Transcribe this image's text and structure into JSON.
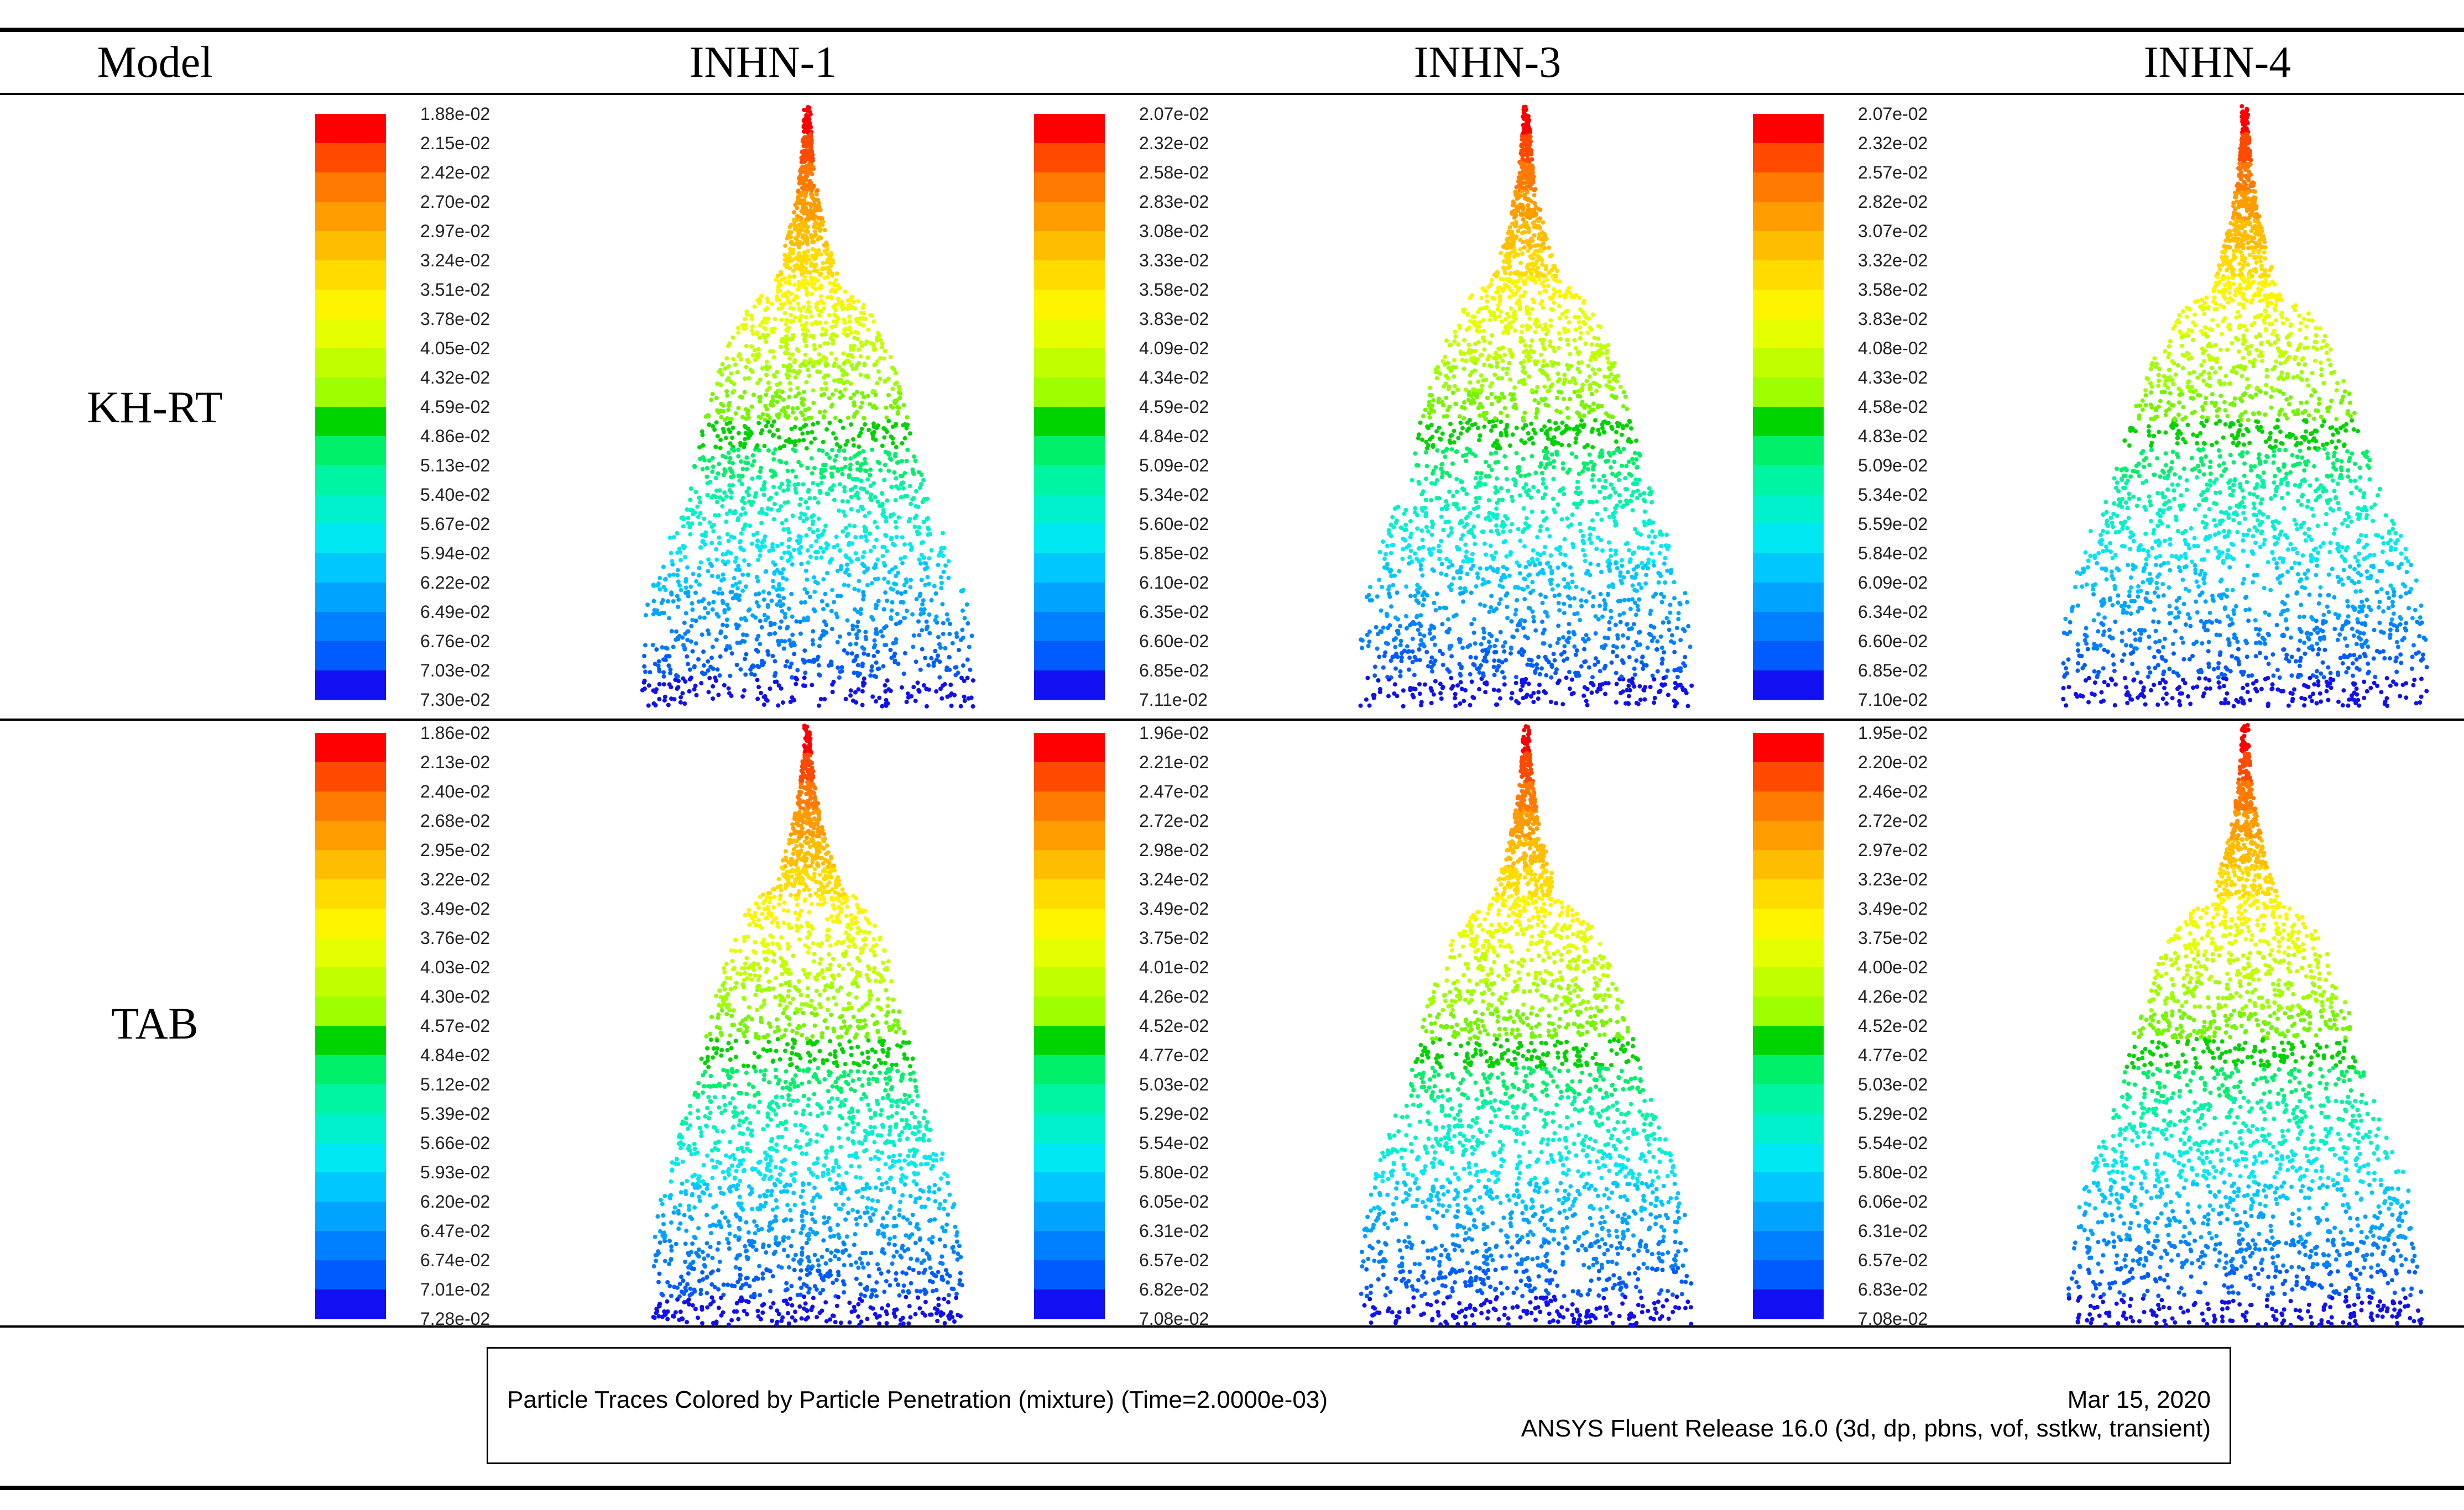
{
  "table": {
    "header_model": "Model",
    "columns": [
      "INHN-1",
      "INHN-3",
      "INHN-4"
    ],
    "rows": [
      "KH-RT",
      "TAB"
    ]
  },
  "colors": {
    "scale": [
      "#ff0000",
      "#ff4a00",
      "#ff7a00",
      "#ff9d00",
      "#ffbd00",
      "#ffdb00",
      "#fff400",
      "#e5ff00",
      "#c1ff00",
      "#9dff00",
      "#76f500",
      "#00d400",
      "#00f06a",
      "#00f5a3",
      "#00f2cd",
      "#00e8f2",
      "#00c8ff",
      "#00a4ff",
      "#0080ff",
      "#005cff",
      "#1010f0"
    ],
    "line": "#000000"
  },
  "chart_data": [
    {
      "type": "colorbar",
      "row": "KH-RT",
      "model": "INHN-1",
      "title": "Particle Penetration (mixture)",
      "tick_labels": [
        "1.88e-02",
        "2.15e-02",
        "2.42e-02",
        "2.70e-02",
        "2.97e-02",
        "3.24e-02",
        "3.51e-02",
        "3.78e-02",
        "4.05e-02",
        "4.32e-02",
        "4.59e-02",
        "4.86e-02",
        "5.13e-02",
        "5.40e-02",
        "5.67e-02",
        "5.94e-02",
        "6.22e-02",
        "6.49e-02",
        "6.76e-02",
        "7.03e-02",
        "7.30e-02"
      ],
      "spray": {
        "core_end_fraction": 0.31,
        "transition_fraction": 0.65,
        "max_half_width": 300
      }
    },
    {
      "type": "colorbar",
      "row": "KH-RT",
      "model": "INHN-3",
      "title": "Particle Penetration (mixture)",
      "tick_labels": [
        "2.07e-02",
        "2.32e-02",
        "2.58e-02",
        "2.83e-02",
        "3.08e-02",
        "3.33e-02",
        "3.58e-02",
        "3.83e-02",
        "4.09e-02",
        "4.34e-02",
        "4.59e-02",
        "4.84e-02",
        "5.09e-02",
        "5.34e-02",
        "5.60e-02",
        "5.85e-02",
        "6.10e-02",
        "6.35e-02",
        "6.60e-02",
        "6.85e-02",
        "7.11e-02"
      ],
      "spray": {
        "core_end_fraction": 0.3,
        "transition_fraction": 0.62,
        "max_half_width": 300
      }
    },
    {
      "type": "colorbar",
      "row": "KH-RT",
      "model": "INHN-4",
      "title": "Particle Penetration (mixture)",
      "tick_labels": [
        "2.07e-02",
        "2.32e-02",
        "2.57e-02",
        "2.82e-02",
        "3.07e-02",
        "3.32e-02",
        "3.58e-02",
        "3.83e-02",
        "4.08e-02",
        "4.33e-02",
        "4.58e-02",
        "4.83e-02",
        "5.09e-02",
        "5.34e-02",
        "5.59e-02",
        "5.84e-02",
        "6.09e-02",
        "6.34e-02",
        "6.60e-02",
        "6.85e-02",
        "7.10e-02"
      ],
      "spray": {
        "core_end_fraction": 0.32,
        "transition_fraction": 0.62,
        "max_half_width": 330
      }
    },
    {
      "type": "colorbar",
      "row": "TAB",
      "model": "INHN-1",
      "title": "Particle Penetration (mixture)",
      "tick_labels": [
        "1.86e-02",
        "2.13e-02",
        "2.40e-02",
        "2.68e-02",
        "2.95e-02",
        "3.22e-02",
        "3.49e-02",
        "3.76e-02",
        "4.03e-02",
        "4.30e-02",
        "4.57e-02",
        "4.84e-02",
        "5.12e-02",
        "5.39e-02",
        "5.66e-02",
        "5.93e-02",
        "6.20e-02",
        "6.47e-02",
        "6.74e-02",
        "7.01e-02",
        "7.28e-02"
      ],
      "spray": {
        "core_end_fraction": 0.28,
        "transition_fraction": 0.6,
        "max_half_width": 280
      }
    },
    {
      "type": "colorbar",
      "row": "TAB",
      "model": "INHN-3",
      "title": "Particle Penetration (mixture)",
      "tick_labels": [
        "1.96e-02",
        "2.21e-02",
        "2.47e-02",
        "2.72e-02",
        "2.98e-02",
        "3.24e-02",
        "3.49e-02",
        "3.75e-02",
        "4.01e-02",
        "4.26e-02",
        "4.52e-02",
        "4.77e-02",
        "5.03e-02",
        "5.29e-02",
        "5.54e-02",
        "5.80e-02",
        "6.05e-02",
        "6.31e-02",
        "6.57e-02",
        "6.82e-02",
        "7.08e-02"
      ],
      "spray": {
        "core_end_fraction": 0.3,
        "transition_fraction": 0.6,
        "max_half_width": 300
      }
    },
    {
      "type": "colorbar",
      "row": "TAB",
      "model": "INHN-4",
      "title": "Particle Penetration (mixture)",
      "tick_labels": [
        "1.95e-02",
        "2.20e-02",
        "2.46e-02",
        "2.72e-02",
        "2.97e-02",
        "3.23e-02",
        "3.49e-02",
        "3.75e-02",
        "4.00e-02",
        "4.26e-02",
        "4.52e-02",
        "4.77e-02",
        "5.03e-02",
        "5.29e-02",
        "5.54e-02",
        "5.80e-02",
        "6.06e-02",
        "6.31e-02",
        "6.57e-02",
        "6.83e-02",
        "7.08e-02"
      ],
      "spray": {
        "core_end_fraction": 0.3,
        "transition_fraction": 0.62,
        "max_half_width": 320
      }
    }
  ],
  "footer": {
    "caption": "Particle Traces Colored by Particle Penetration (mixture)   (Time=2.0000e-03)",
    "date": "Mar 15, 2020",
    "software": "ANSYS Fluent Release 16.0 (3d, dp, pbns, vof, sstkw, transient)"
  }
}
